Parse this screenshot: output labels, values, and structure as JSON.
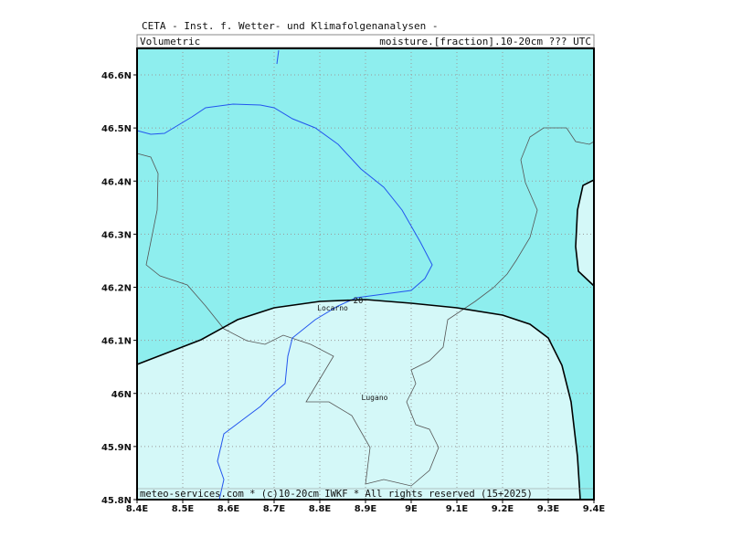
{
  "header": {
    "title": "CETA - Inst. f. Wetter- und Klimafolgenanalysen -",
    "left": "Volumetric",
    "right": "moisture.[fraction].10-20cm ??? UTC"
  },
  "axes": {
    "y_labels": [
      "46.6N",
      "46.5N",
      "46.4N",
      "46.3N",
      "46.2N",
      "46.1N",
      "46N",
      "45.9N",
      "45.8N"
    ],
    "x_labels": [
      "8.4E",
      "8.5E",
      "8.6E",
      "8.7E",
      "8.8E",
      "8.9E",
      "9E",
      "9.1E",
      "9.2E",
      "9.3E",
      "9.4E"
    ]
  },
  "places": [
    {
      "label": "Locarno"
    },
    {
      "label": "Lugano"
    }
  ],
  "contour_label": "20",
  "footer": "meteo-services.com * (c)10-20cm IWKF * All rights reserved (15+2025)"
}
